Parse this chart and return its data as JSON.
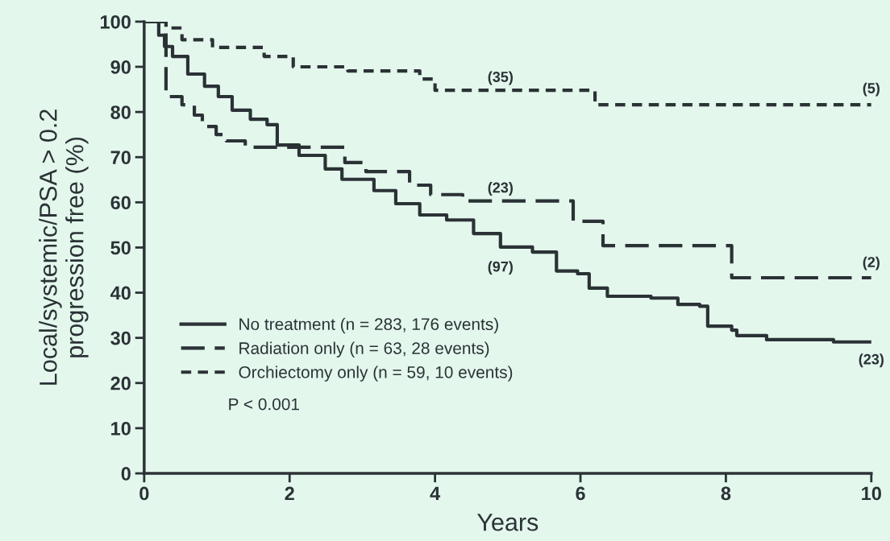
{
  "chart_data": {
    "type": "step",
    "xlabel": "Years",
    "ylabel": "Local/systemic/PSA > 0.2\nprogression free (%)",
    "xlim": [
      0,
      10
    ],
    "xticks": [
      0,
      2,
      4,
      6,
      8,
      10
    ],
    "ylim": [
      0,
      100
    ],
    "yticks": [
      0,
      10,
      20,
      30,
      40,
      50,
      60,
      70,
      80,
      90,
      100
    ],
    "grid": false,
    "legend": "bottom left",
    "marker": "none",
    "series": [
      {
        "name": "No treatment (n = 283, 176 events)",
        "color": "#2b3236",
        "line_style": "solid",
        "x": [
          0,
          0.2,
          0.28,
          0.39,
          0.6,
          0.83,
          1.02,
          1.21,
          1.46,
          1.69,
          1.83,
          2.13,
          2.49,
          2.72,
          3.16,
          3.46,
          3.79,
          4.16,
          4.53,
          4.9,
          5.34,
          5.67,
          5.96,
          6.12,
          6.37,
          6.97,
          7.34,
          7.64,
          7.75,
          8.08,
          8.15,
          8.56,
          9.48,
          10
        ],
        "values": [
          100,
          97,
          94.5,
          92.3,
          88.4,
          85.7,
          83.4,
          80.4,
          78.4,
          77.2,
          72.7,
          70.4,
          67.4,
          65.1,
          62.6,
          59.7,
          57.2,
          56.1,
          53.1,
          50.1,
          49,
          44.8,
          44.2,
          41,
          39.2,
          38.8,
          37.4,
          37,
          32.6,
          31.7,
          30.5,
          29.6,
          29.1,
          29.1
        ]
      },
      {
        "name": "Radiation only (n = 63, 28 events)",
        "color": "#2b3236",
        "line_style": "dashed",
        "x": [
          0,
          0.3,
          0.52,
          0.69,
          0.8,
          0.99,
          1.13,
          1.39,
          2.76,
          3.05,
          3.65,
          3.94,
          4.38,
          5.9,
          6.31,
          8.08,
          10
        ],
        "values": [
          100,
          83.4,
          81.6,
          79.3,
          76.8,
          75,
          73.6,
          72.2,
          68.8,
          66.8,
          63.8,
          61.7,
          60.3,
          55.8,
          50.4,
          43.3,
          43.3
        ]
      },
      {
        "name": "Orchiectomy only (n = 59, 10 events)",
        "color": "#2b3236",
        "line_style": "dotted",
        "x": [
          0,
          0.3,
          0.52,
          0.94,
          1.65,
          2.05,
          2.8,
          3.79,
          4.0,
          6.2,
          10
        ],
        "values": [
          100,
          98.6,
          96,
          94.3,
          92.3,
          90,
          89.1,
          87.3,
          84.8,
          81.6,
          81.6
        ]
      }
    ],
    "annotations": [
      "(35)",
      "(23)",
      "(97)",
      "(5)",
      "(2)",
      "(23)",
      "P < 0.001"
    ]
  }
}
